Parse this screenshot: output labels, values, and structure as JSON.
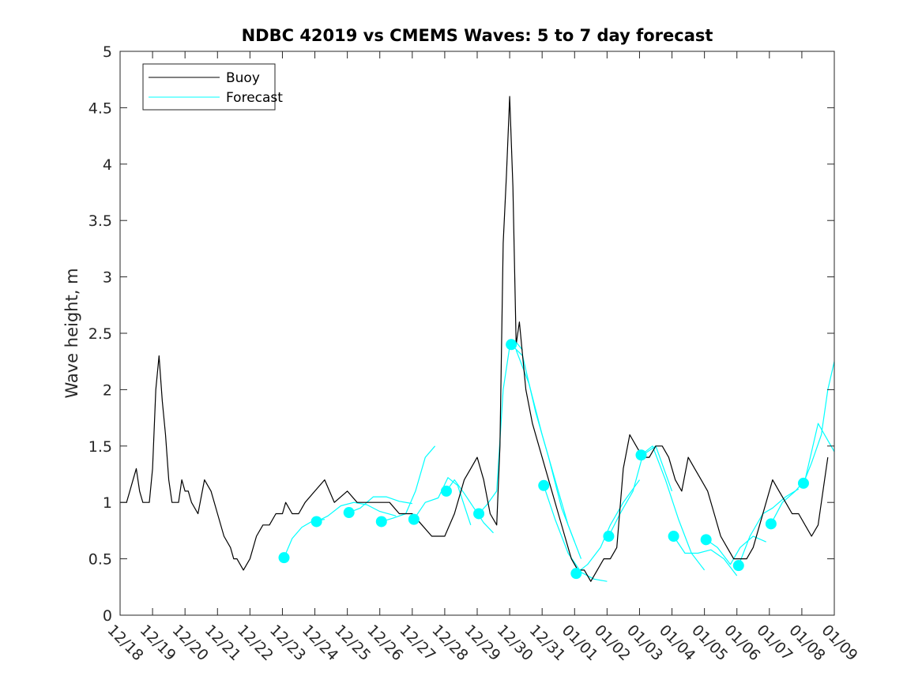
{
  "chart_data": {
    "type": "line",
    "title": "NDBC 42019 vs CMEMS Waves: 5 to 7 day forecast",
    "xlabel": "",
    "ylabel": "Wave height, m",
    "xlim": [
      0,
      22
    ],
    "ylim": [
      0,
      5
    ],
    "y_ticks": [
      0,
      0.5,
      1,
      1.5,
      2,
      2.5,
      3,
      3.5,
      4,
      4.5,
      5
    ],
    "y_tick_labels": [
      "0",
      "0.5",
      "1",
      "1.5",
      "2",
      "2.5",
      "3",
      "3.5",
      "4",
      "4.5",
      "5"
    ],
    "x_ticks": [
      0,
      1,
      2,
      3,
      4,
      5,
      6,
      7,
      8,
      9,
      10,
      11,
      12,
      13,
      14,
      15,
      16,
      17,
      18,
      19,
      20,
      21,
      22
    ],
    "x_tick_labels": [
      "12/18",
      "12/19",
      "12/20",
      "12/21",
      "12/22",
      "12/23",
      "12/24",
      "12/25",
      "12/26",
      "12/27",
      "12/28",
      "12/29",
      "12/30",
      "12/31",
      "01/01",
      "01/02",
      "01/03",
      "01/04",
      "01/05",
      "01/06",
      "01/07",
      "01/08",
      "01/09"
    ],
    "grid": false,
    "legend": {
      "placement": "top-left",
      "entries": [
        "Buoy",
        "Forecast"
      ]
    },
    "colors": {
      "buoy": "#000000",
      "forecast": "#00ffff"
    },
    "buoy": {
      "name": "Buoy",
      "x": [
        0,
        0.2,
        0.3,
        0.4,
        0.5,
        0.6,
        0.7,
        0.8,
        0.9,
        1.0,
        1.1,
        1.2,
        1.3,
        1.4,
        1.5,
        1.6,
        1.7,
        1.8,
        1.9,
        2.0,
        2.1,
        2.2,
        2.4,
        2.6,
        2.8,
        3.0,
        3.2,
        3.4,
        3.5,
        3.6,
        3.8,
        4.0,
        4.2,
        4.4,
        4.6,
        4.8,
        5.0,
        5.1,
        5.3,
        5.5,
        5.7,
        6.0,
        6.3,
        6.6,
        7.0,
        7.3,
        7.6,
        8.0,
        8.3,
        8.6,
        9.0,
        9.3,
        9.6,
        10.0,
        10.3,
        10.6,
        10.8,
        11.0,
        11.2,
        11.4,
        11.6,
        11.7,
        11.8,
        11.9,
        12.0,
        12.1,
        12.2,
        12.3,
        12.5,
        12.7,
        12.9,
        13.1,
        13.3,
        13.5,
        13.7,
        13.9,
        14.1,
        14.3,
        14.5,
        14.7,
        14.9,
        15.1,
        15.3,
        15.5,
        15.7,
        15.9,
        16.1,
        16.3,
        16.5,
        16.7,
        16.9,
        17.1,
        17.3,
        17.5,
        17.7,
        17.9,
        18.1,
        18.3,
        18.5,
        18.7,
        18.9,
        19.1,
        19.3,
        19.5,
        19.7,
        19.9,
        20.1,
        20.3,
        20.5,
        20.7,
        20.9,
        21.1
      ],
      "y": [
        1.0,
        1.0,
        1.1,
        1.2,
        1.3,
        1.1,
        1.0,
        1.0,
        1.0,
        1.3,
        2.0,
        2.3,
        1.9,
        1.6,
        1.2,
        1.0,
        1.0,
        1.0,
        1.2,
        1.1,
        1.1,
        1.0,
        0.9,
        1.2,
        1.1,
        0.9,
        0.7,
        0.6,
        0.5,
        0.5,
        0.4,
        0.5,
        0.7,
        0.8,
        0.8,
        0.9,
        0.9,
        1.0,
        0.9,
        0.9,
        1.0,
        1.1,
        1.2,
        1.0,
        1.1,
        1.0,
        1.0,
        1.0,
        1.0,
        0.9,
        0.9,
        0.8,
        0.7,
        0.7,
        0.9,
        1.2,
        1.3,
        1.4,
        1.2,
        0.9,
        0.8,
        1.5,
        3.3,
        3.9,
        4.6,
        3.8,
        2.4,
        2.6,
        2.0,
        1.7,
        1.5,
        1.3,
        1.1,
        0.9,
        0.7,
        0.5,
        0.4,
        0.4,
        0.3,
        0.4,
        0.5,
        0.5,
        0.6,
        1.3,
        1.6,
        1.5,
        1.4,
        1.4,
        1.5,
        1.5,
        1.4,
        1.2,
        1.1,
        1.4,
        1.3,
        1.2,
        1.1,
        0.9,
        0.7,
        0.6,
        0.5,
        0.5,
        0.5,
        0.6,
        0.8,
        1.0,
        1.2,
        1.1,
        1.0,
        0.9,
        0.9,
        0.8
      ]
    },
    "buoy_tail": {
      "x": [
        21.1,
        21.3,
        21.5,
        21.6,
        21.7,
        21.8
      ],
      "y": [
        0.8,
        0.7,
        0.8,
        1.0,
        1.2,
        1.4
      ]
    },
    "forecast": [
      {
        "x": [
          5.05,
          5.3,
          5.6,
          5.9,
          6.3
        ],
        "y": [
          0.51,
          0.68,
          0.78,
          0.83,
          0.85
        ]
      },
      {
        "x": [
          6.05,
          6.4,
          6.8,
          7.2,
          7.6,
          8.0,
          8.5
        ],
        "y": [
          0.83,
          0.88,
          0.97,
          1.0,
          0.98,
          0.92,
          0.88
        ]
      },
      {
        "x": [
          7.05,
          7.4,
          7.8,
          8.2,
          8.6,
          9.0
        ],
        "y": [
          0.91,
          0.95,
          1.05,
          1.05,
          1.01,
          0.99
        ]
      },
      {
        "x": [
          8.05,
          8.4,
          8.8,
          9.1,
          9.4,
          9.7
        ],
        "y": [
          0.83,
          0.86,
          0.9,
          1.1,
          1.4,
          1.5
        ]
      },
      {
        "x": [
          9.05,
          9.4,
          9.8,
          10.1,
          10.4,
          10.8
        ],
        "y": [
          0.85,
          1.0,
          1.04,
          1.22,
          1.15,
          0.8
        ]
      },
      {
        "x": [
          10.05,
          10.3,
          10.6,
          10.9,
          11.2,
          11.5
        ],
        "y": [
          1.1,
          1.2,
          1.08,
          0.95,
          0.82,
          0.73
        ]
      },
      {
        "x": [
          11.05,
          11.3,
          11.6,
          11.8,
          12.0,
          12.2,
          12.4
        ],
        "y": [
          0.9,
          0.98,
          1.1,
          2.0,
          2.38,
          2.42,
          2.35
        ]
      },
      {
        "x": [
          12.05,
          12.4,
          12.8,
          13.2,
          13.6,
          14.0
        ],
        "y": [
          2.4,
          2.3,
          1.8,
          1.4,
          0.95,
          0.65
        ]
      },
      {
        "x": [
          12.2,
          12.6,
          13.0,
          13.4,
          13.8,
          14.2
        ],
        "y": [
          2.35,
          2.05,
          1.6,
          1.2,
          0.8,
          0.5
        ]
      },
      {
        "x": [
          13.05,
          13.4,
          13.8,
          14.2,
          14.6,
          15.0
        ],
        "y": [
          1.15,
          0.85,
          0.55,
          0.38,
          0.32,
          0.3
        ]
      },
      {
        "x": [
          14.05,
          14.4,
          14.8,
          15.1,
          15.5,
          16.0
        ],
        "y": [
          0.37,
          0.45,
          0.6,
          0.8,
          1.0,
          1.2
        ]
      },
      {
        "x": [
          15.05,
          15.4,
          15.8,
          16.1,
          16.5,
          17.0
        ],
        "y": [
          0.7,
          0.9,
          1.1,
          1.42,
          1.5,
          1.1
        ]
      },
      {
        "x": [
          16.05,
          16.4,
          16.8,
          17.2,
          17.6,
          18.0
        ],
        "y": [
          1.42,
          1.5,
          1.2,
          0.85,
          0.55,
          0.4
        ]
      },
      {
        "x": [
          17.05,
          17.4,
          17.8,
          18.2,
          18.6,
          19.0
        ],
        "y": [
          0.7,
          0.55,
          0.55,
          0.58,
          0.5,
          0.35
        ]
      },
      {
        "x": [
          18.05,
          18.4,
          18.8,
          19.1,
          19.5,
          19.9
        ],
        "y": [
          0.67,
          0.6,
          0.45,
          0.6,
          0.7,
          0.65
        ]
      },
      {
        "x": [
          19.05,
          19.4,
          19.8,
          20.1,
          20.5,
          20.9
        ],
        "y": [
          0.44,
          0.7,
          0.9,
          0.95,
          1.05,
          1.12
        ]
      },
      {
        "x": [
          20.05,
          20.4,
          20.8,
          21.1,
          21.5,
          22.0
        ],
        "y": [
          0.81,
          1.0,
          1.1,
          1.2,
          1.7,
          1.45
        ]
      },
      {
        "x": [
          21.05,
          21.3,
          21.6,
          21.8,
          22.0
        ],
        "y": [
          1.17,
          1.35,
          1.6,
          2.0,
          2.25
        ]
      }
    ],
    "forecast_markers": {
      "x": [
        5.05,
        6.05,
        7.05,
        8.05,
        9.05,
        10.05,
        11.05,
        12.05,
        13.05,
        14.05,
        15.05,
        16.05,
        17.05,
        18.05,
        19.05,
        20.05,
        21.05
      ],
      "y": [
        0.51,
        0.83,
        0.91,
        0.83,
        0.85,
        1.1,
        0.9,
        2.4,
        1.15,
        0.37,
        0.7,
        1.42,
        0.7,
        0.67,
        0.44,
        0.81,
        1.17
      ]
    }
  }
}
